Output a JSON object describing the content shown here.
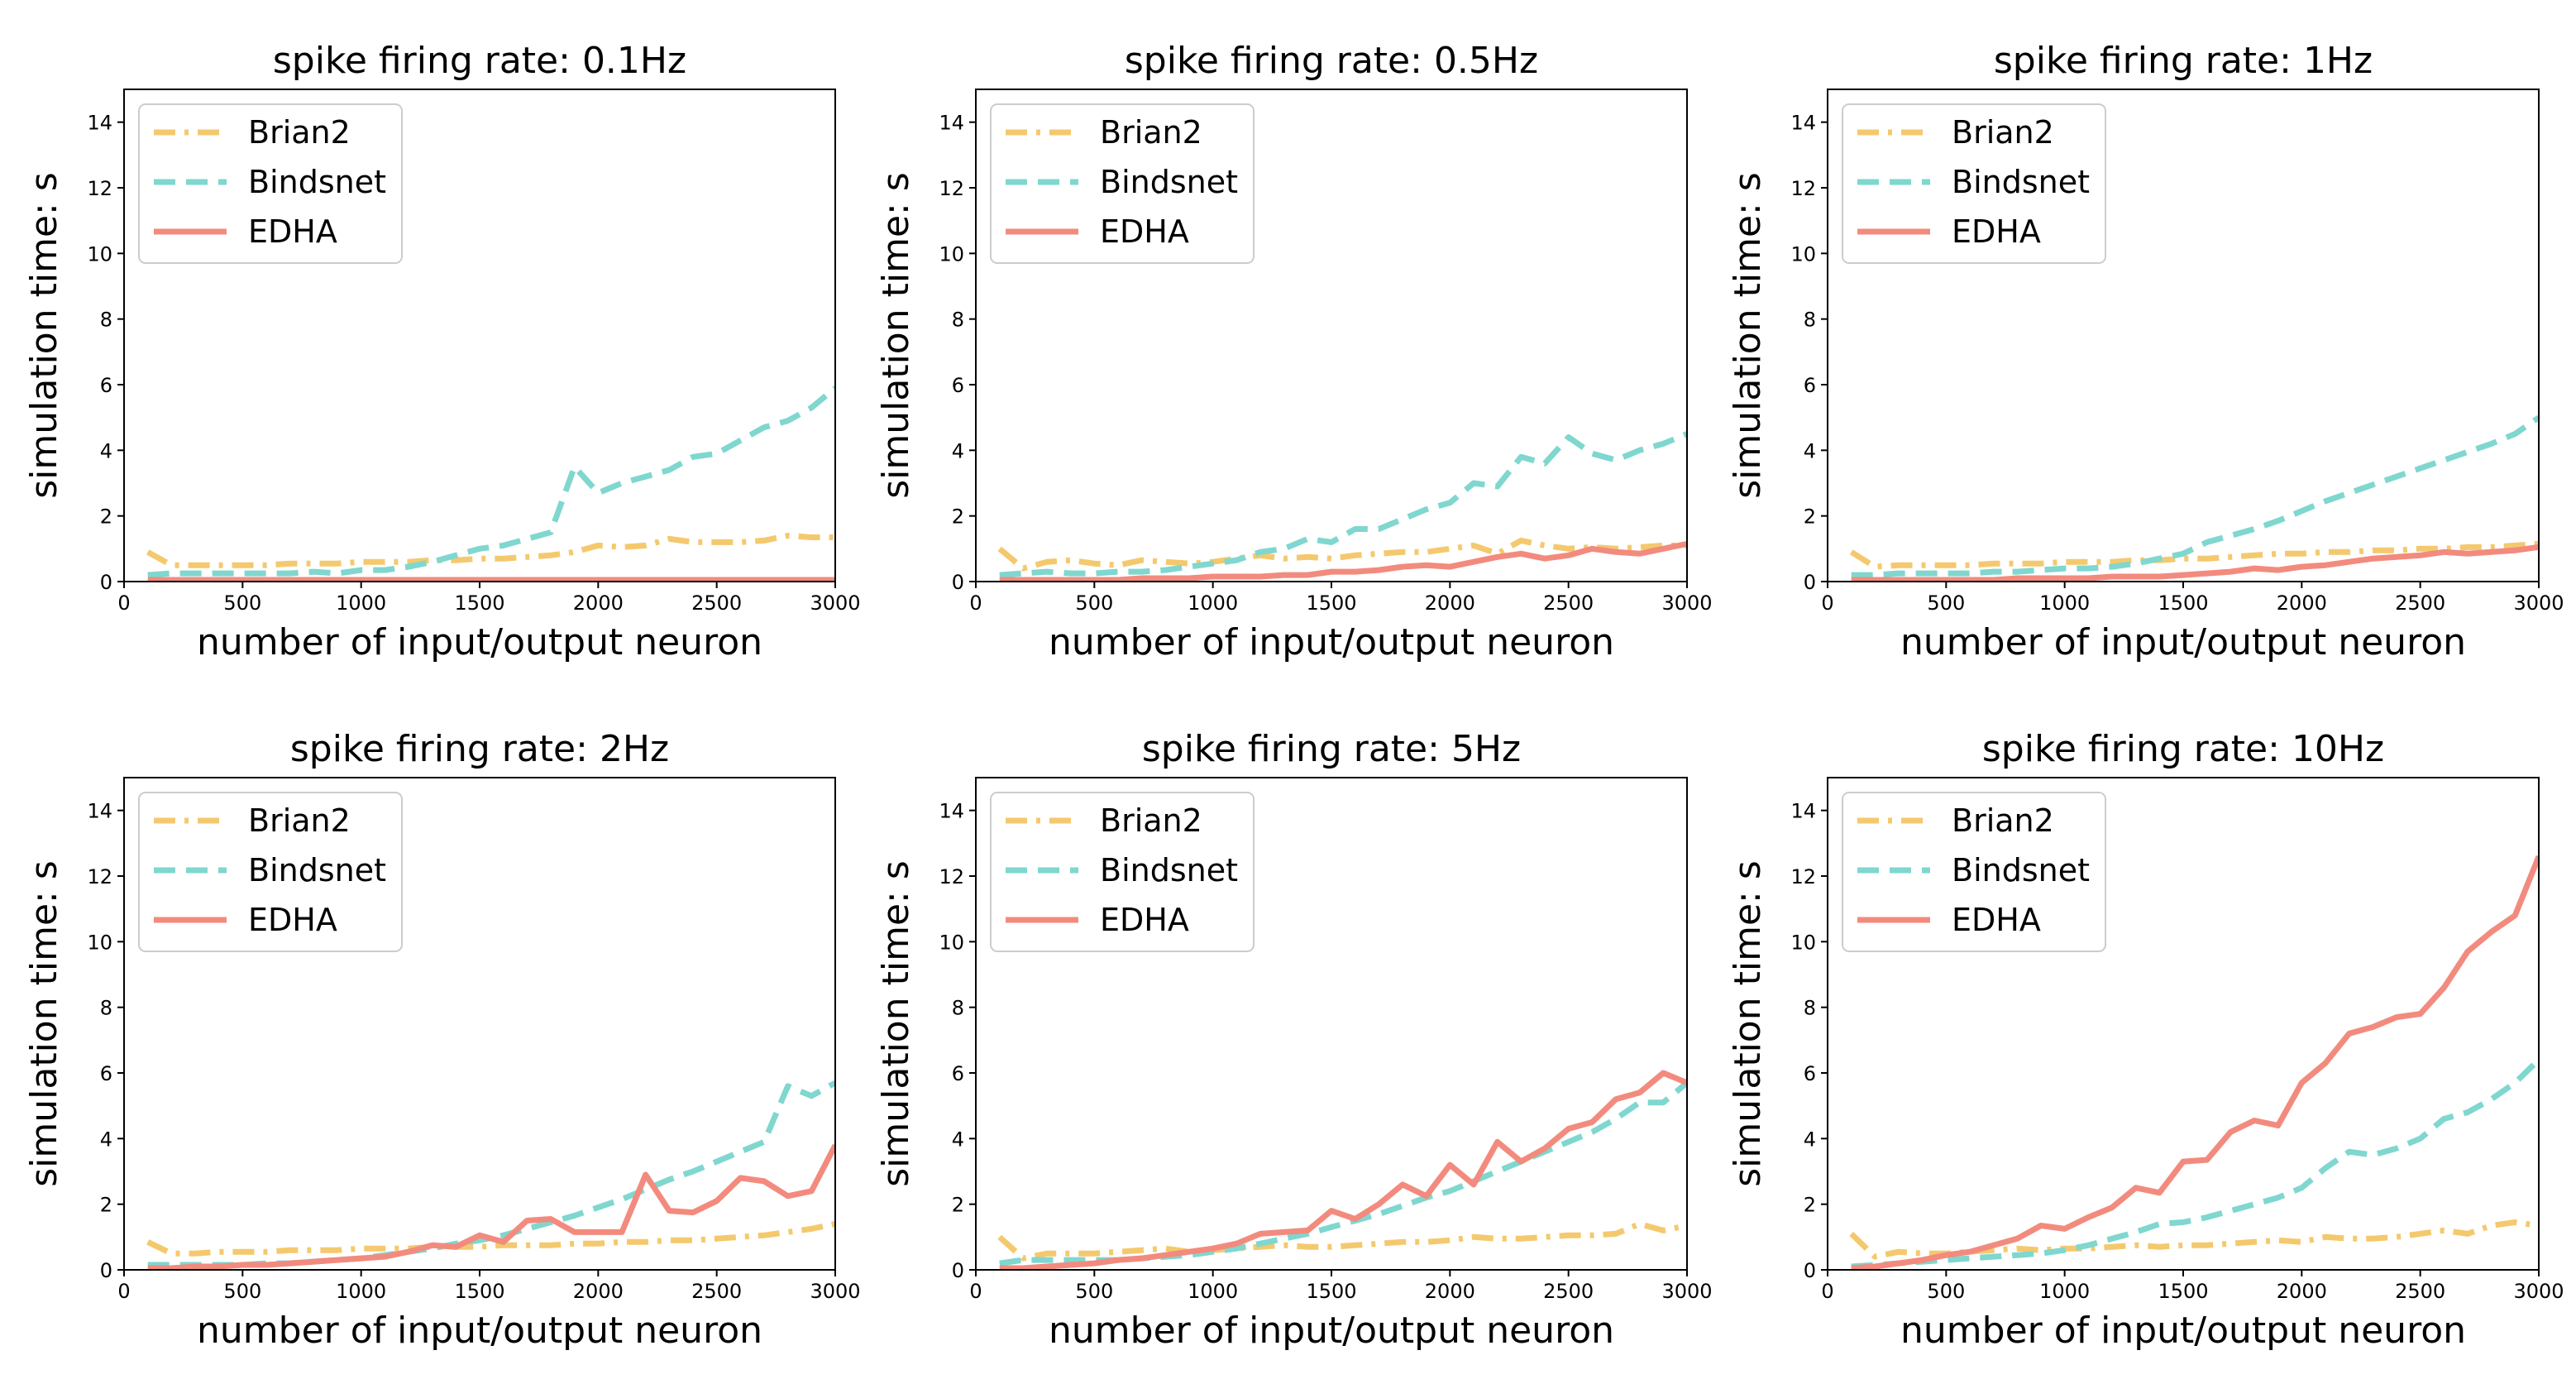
{
  "figure": {
    "legend_location": "upper-left"
  },
  "colors": {
    "Brian2": "#f4c96e",
    "Bindsnet": "#7fd7cf",
    "EDHA": "#f28b7e"
  },
  "line_styles": {
    "Brian2": "dashdot",
    "Bindsnet": "dashed",
    "EDHA": "solid"
  },
  "chart_data": [
    {
      "type": "line",
      "title": "spike firing rate: 0.1Hz",
      "xlabel": "number of input/output neuron",
      "ylabel": "simulation time: s",
      "xlim": [
        0,
        3000
      ],
      "ylim": [
        0,
        15
      ],
      "xticks": [
        0,
        500,
        1000,
        1500,
        2000,
        2500,
        3000
      ],
      "yticks": [
        0,
        2,
        4,
        6,
        8,
        10,
        12,
        14
      ],
      "x": [
        100,
        200,
        300,
        400,
        500,
        600,
        700,
        800,
        900,
        1000,
        1100,
        1200,
        1300,
        1400,
        1500,
        1600,
        1700,
        1800,
        1900,
        2000,
        2100,
        2200,
        2300,
        2400,
        2500,
        2600,
        2700,
        2800,
        2900,
        3000
      ],
      "series": [
        {
          "name": "Brian2",
          "values": [
            0.9,
            0.5,
            0.5,
            0.5,
            0.5,
            0.5,
            0.55,
            0.55,
            0.55,
            0.6,
            0.6,
            0.6,
            0.65,
            0.65,
            0.7,
            0.7,
            0.75,
            0.8,
            0.9,
            1.1,
            1.05,
            1.1,
            1.3,
            1.2,
            1.2,
            1.2,
            1.25,
            1.4,
            1.35,
            1.35
          ]
        },
        {
          "name": "Bindsnet",
          "values": [
            0.2,
            0.25,
            0.25,
            0.25,
            0.25,
            0.25,
            0.25,
            0.3,
            0.25,
            0.35,
            0.35,
            0.45,
            0.6,
            0.8,
            1.0,
            1.1,
            1.3,
            1.5,
            3.5,
            2.7,
            3.0,
            3.2,
            3.4,
            3.8,
            3.9,
            4.3,
            4.7,
            4.9,
            5.3,
            5.9
          ]
        },
        {
          "name": "EDHA",
          "values": [
            0.05,
            0.05,
            0.05,
            0.05,
            0.05,
            0.05,
            0.05,
            0.05,
            0.05,
            0.05,
            0.05,
            0.05,
            0.05,
            0.05,
            0.05,
            0.05,
            0.05,
            0.05,
            0.05,
            0.05,
            0.05,
            0.05,
            0.05,
            0.05,
            0.05,
            0.05,
            0.05,
            0.05,
            0.05,
            0.05
          ]
        }
      ]
    },
    {
      "type": "line",
      "title": "spike firing rate: 0.5Hz",
      "xlabel": "number of input/output neuron",
      "ylabel": "simulation time: s",
      "xlim": [
        0,
        3000
      ],
      "ylim": [
        0,
        15
      ],
      "xticks": [
        0,
        500,
        1000,
        1500,
        2000,
        2500,
        3000
      ],
      "yticks": [
        0,
        2,
        4,
        6,
        8,
        10,
        12,
        14
      ],
      "x": [
        100,
        200,
        300,
        400,
        500,
        600,
        700,
        800,
        900,
        1000,
        1100,
        1200,
        1300,
        1400,
        1500,
        1600,
        1700,
        1800,
        1900,
        2000,
        2100,
        2200,
        2300,
        2400,
        2500,
        2600,
        2700,
        2800,
        2900,
        3000
      ],
      "series": [
        {
          "name": "Brian2",
          "values": [
            1.0,
            0.4,
            0.6,
            0.65,
            0.55,
            0.5,
            0.65,
            0.6,
            0.55,
            0.6,
            0.7,
            0.8,
            0.7,
            0.75,
            0.7,
            0.8,
            0.85,
            0.9,
            0.9,
            1.0,
            1.1,
            0.85,
            1.25,
            1.1,
            1.0,
            1.05,
            1.0,
            1.05,
            1.1,
            1.1
          ]
        },
        {
          "name": "Bindsnet",
          "values": [
            0.2,
            0.25,
            0.3,
            0.25,
            0.25,
            0.3,
            0.3,
            0.35,
            0.45,
            0.55,
            0.65,
            0.9,
            1.0,
            1.3,
            1.2,
            1.6,
            1.6,
            1.9,
            2.2,
            2.4,
            3.0,
            2.9,
            3.8,
            3.6,
            4.4,
            3.9,
            3.7,
            4.0,
            4.2,
            4.5
          ]
        },
        {
          "name": "EDHA",
          "values": [
            0.05,
            0.05,
            0.05,
            0.05,
            0.05,
            0.05,
            0.1,
            0.1,
            0.1,
            0.15,
            0.15,
            0.15,
            0.2,
            0.2,
            0.3,
            0.3,
            0.35,
            0.45,
            0.5,
            0.45,
            0.6,
            0.75,
            0.85,
            0.7,
            0.8,
            1.0,
            0.9,
            0.85,
            1.0,
            1.15
          ]
        }
      ]
    },
    {
      "type": "line",
      "title": "spike firing rate: 1Hz",
      "xlabel": "number of input/output neuron",
      "ylabel": "simulation time: s",
      "xlim": [
        0,
        3000
      ],
      "ylim": [
        0,
        15
      ],
      "xticks": [
        0,
        500,
        1000,
        1500,
        2000,
        2500,
        3000
      ],
      "yticks": [
        0,
        2,
        4,
        6,
        8,
        10,
        12,
        14
      ],
      "x": [
        100,
        200,
        300,
        400,
        500,
        600,
        700,
        800,
        900,
        1000,
        1100,
        1200,
        1300,
        1400,
        1500,
        1600,
        1700,
        1800,
        1900,
        2000,
        2100,
        2200,
        2300,
        2400,
        2500,
        2600,
        2700,
        2800,
        2900,
        3000
      ],
      "series": [
        {
          "name": "Brian2",
          "values": [
            0.9,
            0.45,
            0.5,
            0.5,
            0.5,
            0.5,
            0.55,
            0.55,
            0.55,
            0.6,
            0.6,
            0.6,
            0.65,
            0.65,
            0.7,
            0.7,
            0.75,
            0.8,
            0.85,
            0.85,
            0.9,
            0.9,
            0.95,
            0.95,
            1.0,
            1.0,
            1.05,
            1.05,
            1.1,
            1.15
          ]
        },
        {
          "name": "Bindsnet",
          "values": [
            0.2,
            0.2,
            0.25,
            0.25,
            0.25,
            0.25,
            0.3,
            0.3,
            0.35,
            0.4,
            0.4,
            0.45,
            0.55,
            0.7,
            0.85,
            1.2,
            1.4,
            1.6,
            1.85,
            2.15,
            2.45,
            2.7,
            2.95,
            3.2,
            3.45,
            3.7,
            3.95,
            4.2,
            4.5,
            5.0
          ]
        },
        {
          "name": "EDHA",
          "values": [
            0.05,
            0.05,
            0.05,
            0.05,
            0.05,
            0.05,
            0.05,
            0.1,
            0.1,
            0.1,
            0.1,
            0.15,
            0.15,
            0.15,
            0.2,
            0.25,
            0.3,
            0.4,
            0.35,
            0.45,
            0.5,
            0.6,
            0.7,
            0.75,
            0.8,
            0.9,
            0.85,
            0.9,
            0.95,
            1.05
          ]
        }
      ]
    },
    {
      "type": "line",
      "title": "spike firing rate: 2Hz",
      "xlabel": "number of input/output neuron",
      "ylabel": "simulation time: s",
      "xlim": [
        0,
        3000
      ],
      "ylim": [
        0,
        15
      ],
      "xticks": [
        0,
        500,
        1000,
        1500,
        2000,
        2500,
        3000
      ],
      "yticks": [
        0,
        2,
        4,
        6,
        8,
        10,
        12,
        14
      ],
      "x": [
        100,
        200,
        300,
        400,
        500,
        600,
        700,
        800,
        900,
        1000,
        1100,
        1200,
        1300,
        1400,
        1500,
        1600,
        1700,
        1800,
        1900,
        2000,
        2100,
        2200,
        2300,
        2400,
        2500,
        2600,
        2700,
        2800,
        2900,
        3000
      ],
      "series": [
        {
          "name": "Brian2",
          "values": [
            0.85,
            0.5,
            0.5,
            0.55,
            0.55,
            0.55,
            0.6,
            0.6,
            0.6,
            0.65,
            0.65,
            0.65,
            0.7,
            0.7,
            0.7,
            0.75,
            0.75,
            0.75,
            0.8,
            0.8,
            0.85,
            0.85,
            0.9,
            0.9,
            0.95,
            1.0,
            1.05,
            1.15,
            1.25,
            1.4
          ]
        },
        {
          "name": "Bindsnet",
          "values": [
            0.15,
            0.15,
            0.15,
            0.15,
            0.15,
            0.2,
            0.2,
            0.25,
            0.3,
            0.35,
            0.45,
            0.55,
            0.65,
            0.8,
            0.9,
            1.05,
            1.25,
            1.45,
            1.65,
            1.9,
            2.15,
            2.45,
            2.75,
            3.0,
            3.3,
            3.6,
            3.9,
            5.6,
            5.3,
            5.7
          ]
        },
        {
          "name": "EDHA",
          "values": [
            0.05,
            0.05,
            0.1,
            0.1,
            0.15,
            0.15,
            0.2,
            0.25,
            0.3,
            0.35,
            0.4,
            0.55,
            0.75,
            0.7,
            1.05,
            0.85,
            1.5,
            1.55,
            1.15,
            1.15,
            1.15,
            2.9,
            1.8,
            1.75,
            2.1,
            2.8,
            2.7,
            2.25,
            2.4,
            3.8
          ]
        }
      ]
    },
    {
      "type": "line",
      "title": "spike firing rate: 5Hz",
      "xlabel": "number of input/output neuron",
      "ylabel": "simulation time: s",
      "xlim": [
        0,
        3000
      ],
      "ylim": [
        0,
        15
      ],
      "xticks": [
        0,
        500,
        1000,
        1500,
        2000,
        2500,
        3000
      ],
      "yticks": [
        0,
        2,
        4,
        6,
        8,
        10,
        12,
        14
      ],
      "x": [
        100,
        200,
        300,
        400,
        500,
        600,
        700,
        800,
        900,
        1000,
        1100,
        1200,
        1300,
        1400,
        1500,
        1600,
        1700,
        1800,
        1900,
        2000,
        2100,
        2200,
        2300,
        2400,
        2500,
        2600,
        2700,
        2800,
        2900,
        3000
      ],
      "series": [
        {
          "name": "Brian2",
          "values": [
            1.0,
            0.35,
            0.5,
            0.5,
            0.5,
            0.55,
            0.6,
            0.65,
            0.55,
            0.6,
            0.65,
            0.7,
            0.75,
            0.7,
            0.7,
            0.75,
            0.8,
            0.85,
            0.85,
            0.9,
            1.0,
            0.95,
            0.95,
            1.0,
            1.05,
            1.05,
            1.1,
            1.4,
            1.2,
            1.35
          ]
        },
        {
          "name": "Bindsnet",
          "values": [
            0.2,
            0.3,
            0.3,
            0.3,
            0.3,
            0.3,
            0.35,
            0.4,
            0.45,
            0.55,
            0.65,
            0.8,
            0.95,
            1.1,
            1.3,
            1.5,
            1.7,
            1.95,
            2.2,
            2.4,
            2.7,
            3.0,
            3.3,
            3.6,
            3.9,
            4.2,
            4.6,
            5.1,
            5.1,
            5.7
          ]
        },
        {
          "name": "EDHA",
          "values": [
            0.05,
            0.05,
            0.1,
            0.15,
            0.2,
            0.3,
            0.35,
            0.45,
            0.55,
            0.65,
            0.8,
            1.1,
            1.15,
            1.2,
            1.8,
            1.55,
            2.0,
            2.6,
            2.25,
            3.2,
            2.6,
            3.9,
            3.3,
            3.7,
            4.3,
            4.5,
            5.2,
            5.4,
            6.0,
            5.7
          ]
        }
      ]
    },
    {
      "type": "line",
      "title": "spike firing rate: 10Hz",
      "xlabel": "number of input/output neuron",
      "ylabel": "simulation time: s",
      "xlim": [
        0,
        3000
      ],
      "ylim": [
        0,
        15
      ],
      "xticks": [
        0,
        500,
        1000,
        1500,
        2000,
        2500,
        3000
      ],
      "yticks": [
        0,
        2,
        4,
        6,
        8,
        10,
        12,
        14
      ],
      "x": [
        100,
        200,
        300,
        400,
        500,
        600,
        700,
        800,
        900,
        1000,
        1100,
        1200,
        1300,
        1400,
        1500,
        1600,
        1700,
        1800,
        1900,
        2000,
        2100,
        2200,
        2300,
        2400,
        2500,
        2600,
        2700,
        2800,
        2900,
        3000
      ],
      "series": [
        {
          "name": "Brian2",
          "values": [
            1.1,
            0.4,
            0.55,
            0.5,
            0.5,
            0.55,
            0.6,
            0.65,
            0.6,
            0.65,
            0.65,
            0.7,
            0.75,
            0.7,
            0.75,
            0.75,
            0.8,
            0.85,
            0.9,
            0.85,
            1.0,
            0.95,
            0.95,
            1.0,
            1.1,
            1.2,
            1.1,
            1.35,
            1.45,
            1.35
          ]
        },
        {
          "name": "Bindsnet",
          "values": [
            0.1,
            0.15,
            0.2,
            0.25,
            0.3,
            0.35,
            0.4,
            0.45,
            0.5,
            0.6,
            0.75,
            0.95,
            1.15,
            1.4,
            1.45,
            1.6,
            1.8,
            2.0,
            2.2,
            2.5,
            3.1,
            3.6,
            3.5,
            3.7,
            4.0,
            4.6,
            4.8,
            5.2,
            5.7,
            6.4
          ]
        },
        {
          "name": "EDHA",
          "values": [
            0.05,
            0.1,
            0.2,
            0.3,
            0.45,
            0.55,
            0.75,
            0.95,
            1.35,
            1.25,
            1.6,
            1.9,
            2.5,
            2.35,
            3.3,
            3.35,
            4.2,
            4.55,
            4.4,
            5.7,
            6.3,
            7.2,
            7.4,
            7.7,
            7.8,
            8.6,
            9.7,
            10.3,
            10.8,
            12.6
          ]
        }
      ]
    }
  ]
}
